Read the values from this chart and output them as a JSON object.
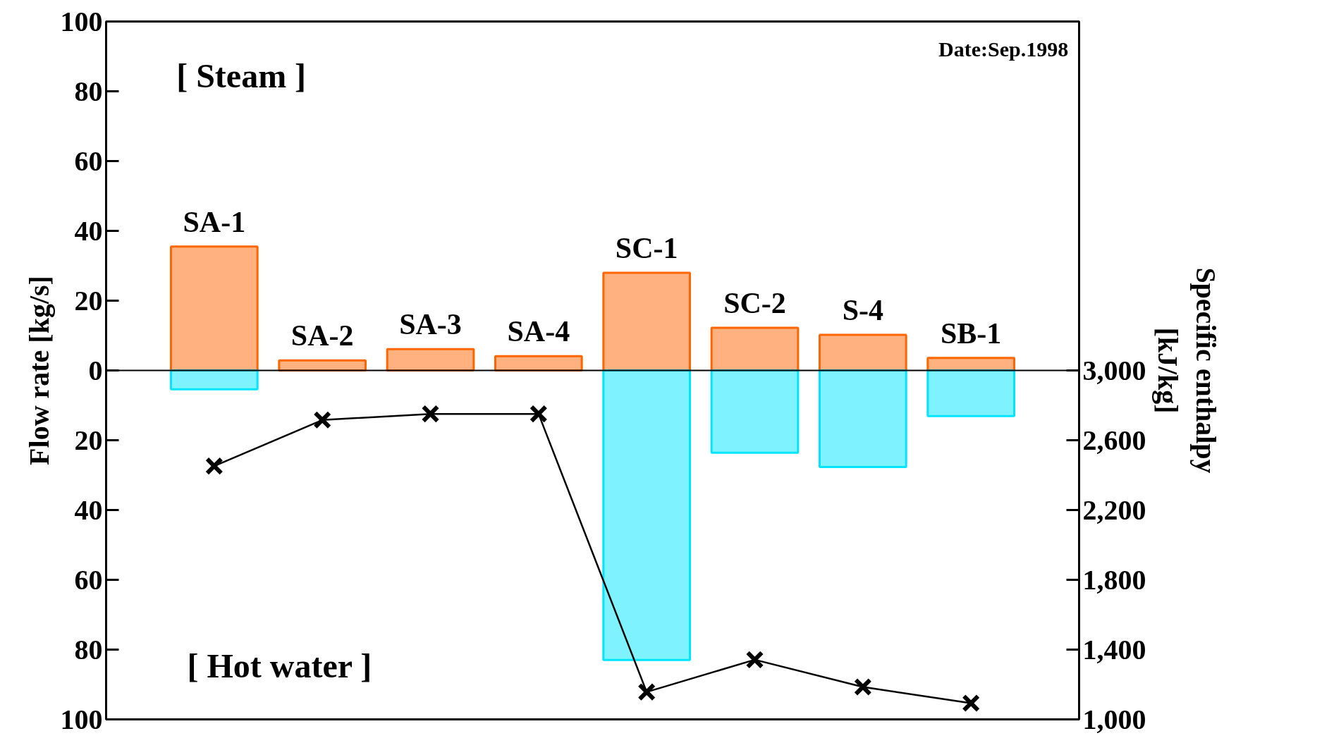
{
  "chart_data": {
    "type": "bar",
    "categories": [
      "SA-1",
      "SA-2",
      "SA-3",
      "SA-4",
      "SC-1",
      "SC-2",
      "S-4",
      "SB-1"
    ],
    "series": [
      {
        "color": "#ff6600",
        "values": [
          35.5,
          2.9,
          6.1,
          4.1,
          28,
          12.2,
          10.2,
          3.6
        ]
      },
      {
        "color": "#00e5ff",
        "values": [
          -5.4,
          null,
          null,
          null,
          -83,
          -23.6,
          -27.7,
          -13.1
        ]
      },
      {
        "type": "line",
        "axis": "y2",
        "color": "#000000",
        "marker": "cross",
        "line_style": "solid",
        "values": [
          2452,
          2716,
          2751,
          2751,
          1157,
          1342,
          1186,
          1093
        ]
      }
    ],
    "ylabel": "Flow rate [kg/s]",
    "y2label": "Specific enthalpy\n[kJ/kg]",
    "ylim": [
      -100,
      100
    ],
    "yticks": [
      {
        "value": -100,
        "label": "100"
      },
      {
        "value": -80,
        "label": "80"
      },
      {
        "value": -60,
        "label": "60"
      },
      {
        "value": -40,
        "label": "40"
      },
      {
        "value": -20,
        "label": "20"
      },
      0,
      20,
      40,
      60,
      80,
      100
    ],
    "y2lim": [
      1000,
      5000
    ],
    "y2ticks": [
      {
        "value": 1000,
        "label": "1,000"
      },
      {
        "value": 1400,
        "label": "1,400"
      },
      {
        "value": 1800,
        "label": "1,800"
      },
      {
        "value": 2200,
        "label": "2,200"
      },
      {
        "value": 2600,
        "label": "2,600"
      },
      {
        "value": 3000,
        "label": "3,000"
      }
    ],
    "annotations": [
      "[ Steam ]",
      "Date:Sep.1998",
      "[ Hot water ]"
    ],
    "grid": false
  }
}
